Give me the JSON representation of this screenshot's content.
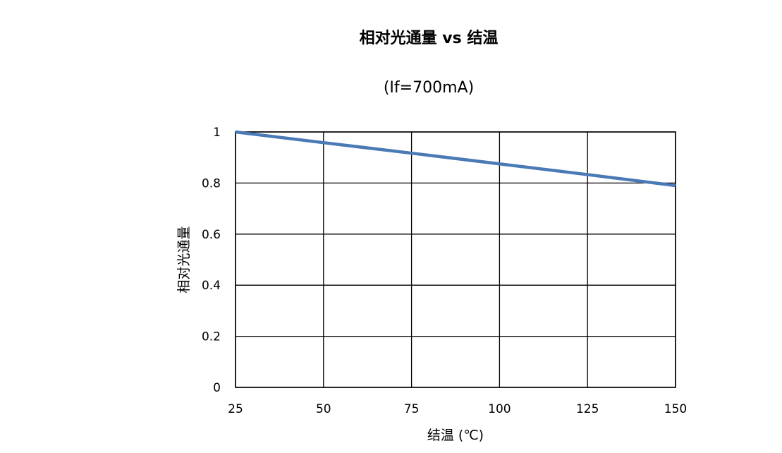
{
  "chart_data": {
    "type": "line",
    "title": "相对光通量  vs  结温",
    "subtitle": "(If=700mA)",
    "xlabel": "结温 (℃)",
    "ylabel": "相对光通量",
    "x_ticks": [
      25,
      50,
      75,
      100,
      125,
      150
    ],
    "y_ticks": [
      0,
      0.2,
      0.4,
      0.6,
      0.8,
      1
    ],
    "x_tick_labels": [
      "25",
      "50",
      "75",
      "100",
      "125",
      "150"
    ],
    "y_tick_labels": [
      "0",
      "0.2",
      "0.4",
      "0.6",
      "0.8",
      "1"
    ],
    "xlim": [
      25,
      150
    ],
    "ylim": [
      0,
      1
    ],
    "grid": true,
    "series": [
      {
        "color": "#4a7ab5",
        "x": [
          25,
          50,
          75,
          100,
          125,
          150
        ],
        "y": [
          1.0,
          0.958,
          0.917,
          0.875,
          0.833,
          0.79
        ]
      }
    ]
  }
}
